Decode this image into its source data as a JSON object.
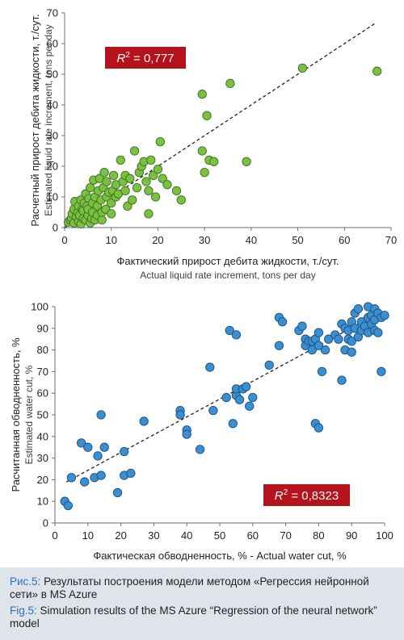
{
  "charts": [
    {
      "id": "chart1",
      "type": "scatter",
      "xlim": [
        0,
        70
      ],
      "ylim": [
        0,
        70
      ],
      "xticks": [
        "0",
        "10",
        "20",
        "30",
        "40",
        "50",
        "60",
        "70"
      ],
      "yticks": [
        "0",
        "10",
        "20",
        "30",
        "40",
        "50",
        "60",
        "70"
      ],
      "xlabel_ru": "Фактический прирост дебита жидкости, т./сут.",
      "xlabel_en": "Actual liquid rate increment, tons per day",
      "ylabel_ru": "Расчетный прирост дебита жидкости, т./сут.",
      "ylabel_en": "Estimated liquid rate increment, tons per day",
      "r2_label": "R",
      "r2_sup": "2",
      "r2_value": " = 0,777",
      "marker_color": "#7ac142",
      "marker_edge": "#3f6e1f",
      "badge_color": "#b5121b",
      "trend": [
        [
          0,
          0
        ],
        [
          66.5,
          66.5
        ]
      ],
      "points": [
        [
          0.8,
          1.8
        ],
        [
          1.2,
          2.5
        ],
        [
          1.5,
          3
        ],
        [
          1.6,
          4.5
        ],
        [
          2,
          1.5
        ],
        [
          2,
          6
        ],
        [
          2.2,
          8.5
        ],
        [
          2.5,
          3.5
        ],
        [
          2.8,
          5
        ],
        [
          3,
          2
        ],
        [
          3,
          7
        ],
        [
          3.2,
          4
        ],
        [
          3.5,
          9
        ],
        [
          3.5,
          1.2
        ],
        [
          3.8,
          6
        ],
        [
          4,
          3
        ],
        [
          4,
          5.5
        ],
        [
          4.2,
          8
        ],
        [
          4.5,
          2.5
        ],
        [
          4.5,
          11
        ],
        [
          4.8,
          7
        ],
        [
          5,
          4
        ],
        [
          5,
          6
        ],
        [
          5.2,
          9.5
        ],
        [
          5.5,
          1.5
        ],
        [
          5.5,
          13
        ],
        [
          5.8,
          3
        ],
        [
          6,
          5
        ],
        [
          6,
          8
        ],
        [
          6.2,
          15.5
        ],
        [
          6.5,
          2.5
        ],
        [
          6.5,
          10
        ],
        [
          7,
          4
        ],
        [
          7,
          7
        ],
        [
          7.2,
          12
        ],
        [
          7.5,
          16
        ],
        [
          7.8,
          9
        ],
        [
          8,
          2.5
        ],
        [
          8,
          5
        ],
        [
          8.3,
          13
        ],
        [
          8.5,
          18
        ],
        [
          8.8,
          6
        ],
        [
          9,
          10
        ],
        [
          9,
          15
        ],
        [
          9.5,
          11.5
        ],
        [
          10,
          4.5
        ],
        [
          10,
          8
        ],
        [
          10.3,
          12
        ],
        [
          10.5,
          17
        ],
        [
          11,
          10
        ],
        [
          11,
          14
        ],
        [
          11.5,
          11
        ],
        [
          12,
          22
        ],
        [
          12.5,
          15
        ],
        [
          13,
          17
        ],
        [
          13,
          12
        ],
        [
          13.5,
          7
        ],
        [
          14,
          16
        ],
        [
          14.5,
          9
        ],
        [
          15,
          25
        ],
        [
          15.5,
          13
        ],
        [
          16,
          18
        ],
        [
          16.5,
          20
        ],
        [
          17,
          21.5
        ],
        [
          17.5,
          15
        ],
        [
          18,
          4.5
        ],
        [
          18,
          12
        ],
        [
          18.5,
          22
        ],
        [
          19,
          17
        ],
        [
          19.5,
          10
        ],
        [
          20,
          19
        ],
        [
          20.5,
          28
        ],
        [
          21,
          16
        ],
        [
          22,
          14
        ],
        [
          24,
          12
        ],
        [
          25,
          9
        ],
        [
          29.5,
          43.5
        ],
        [
          29.5,
          25
        ],
        [
          30,
          18
        ],
        [
          30.5,
          36.5
        ],
        [
          31,
          22
        ],
        [
          32,
          21.5
        ],
        [
          35.5,
          47
        ],
        [
          39,
          21.5
        ],
        [
          51,
          52
        ],
        [
          67,
          51
        ]
      ]
    },
    {
      "id": "chart2",
      "type": "scatter",
      "xlim": [
        0,
        100
      ],
      "ylim": [
        0,
        100
      ],
      "xticks": [
        "0",
        "10",
        "20",
        "30",
        "40",
        "50",
        "60",
        "70",
        "80",
        "90",
        "100"
      ],
      "yticks": [
        "0",
        "10",
        "20",
        "30",
        "40",
        "50",
        "60",
        "70",
        "80",
        "90",
        "100"
      ],
      "xlabel_ru": "Фактическая обводненность, % - Actual water cut, %",
      "xlabel_en": "",
      "ylabel_ru": "Расчитанная обводненность, %",
      "ylabel_en": "Estimated water cut, %",
      "r2_label": "R",
      "r2_sup": "2",
      "r2_value": " = 0,8323",
      "marker_color": "#3a8fd0",
      "marker_edge": "#1c4f80",
      "badge_color": "#b5121b",
      "trend": [
        [
          3.5,
          19
        ],
        [
          97,
          96
        ]
      ],
      "points": [
        [
          3,
          10
        ],
        [
          4,
          8
        ],
        [
          5,
          21
        ],
        [
          8,
          37
        ],
        [
          9,
          19
        ],
        [
          10,
          35
        ],
        [
          12,
          21
        ],
        [
          13,
          31
        ],
        [
          14,
          50
        ],
        [
          14,
          22
        ],
        [
          15,
          35
        ],
        [
          19,
          14
        ],
        [
          21,
          33
        ],
        [
          21,
          22
        ],
        [
          23,
          23
        ],
        [
          27,
          47
        ],
        [
          38,
          52
        ],
        [
          38,
          50
        ],
        [
          40,
          43
        ],
        [
          40,
          41
        ],
        [
          44,
          34
        ],
        [
          47,
          72
        ],
        [
          48,
          52
        ],
        [
          52,
          58
        ],
        [
          53,
          89
        ],
        [
          54,
          46
        ],
        [
          55,
          87
        ],
        [
          55,
          59
        ],
        [
          55,
          62
        ],
        [
          56,
          57
        ],
        [
          57,
          62
        ],
        [
          58,
          63
        ],
        [
          59,
          54
        ],
        [
          60,
          58
        ],
        [
          65,
          73
        ],
        [
          68,
          95
        ],
        [
          68,
          82
        ],
        [
          69,
          93
        ],
        [
          74,
          89
        ],
        [
          75,
          91
        ],
        [
          76,
          85
        ],
        [
          76,
          82
        ],
        [
          77,
          84
        ],
        [
          78,
          80
        ],
        [
          78,
          84
        ],
        [
          79,
          85
        ],
        [
          79,
          46
        ],
        [
          80,
          44
        ],
        [
          80,
          88
        ],
        [
          80,
          82
        ],
        [
          81,
          70
        ],
        [
          82,
          80
        ],
        [
          83,
          85
        ],
        [
          85,
          87
        ],
        [
          86,
          85
        ],
        [
          87,
          92
        ],
        [
          87,
          66
        ],
        [
          88,
          80
        ],
        [
          88,
          90
        ],
        [
          89,
          85
        ],
        [
          89,
          89
        ],
        [
          90,
          84
        ],
        [
          90,
          79
        ],
        [
          90,
          93
        ],
        [
          91,
          97
        ],
        [
          91,
          90
        ],
        [
          92,
          86
        ],
        [
          92,
          99
        ],
        [
          93,
          89
        ],
        [
          93,
          93
        ],
        [
          94,
          91
        ],
        [
          95,
          95
        ],
        [
          95,
          100
        ],
        [
          95,
          88
        ],
        [
          96,
          96
        ],
        [
          96,
          92
        ],
        [
          97,
          99
        ],
        [
          97,
          89
        ],
        [
          97,
          94
        ],
        [
          98,
          88
        ],
        [
          98,
          97
        ],
        [
          99,
          95
        ],
        [
          99,
          70
        ],
        [
          100,
          96
        ]
      ]
    }
  ],
  "caption": {
    "ru_label": "Рис.5:",
    "ru_text": " Результаты построения модели методом «Регрессия нейронной сети» в MS Azure",
    "en_label": "Fig.5:",
    "en_text": " Simulation results of the MS Azure “Regression of the neural network” model"
  }
}
